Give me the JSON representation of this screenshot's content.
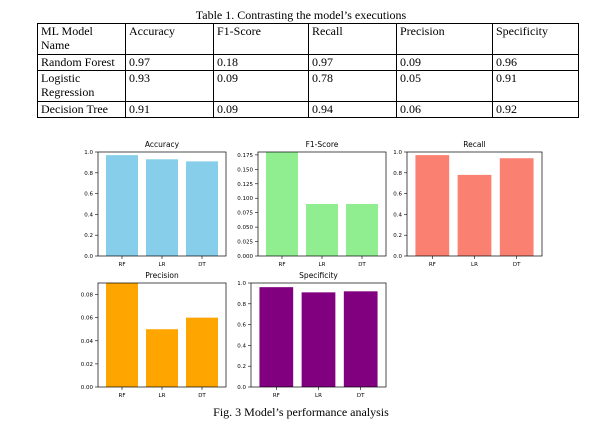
{
  "table": {
    "caption": "Table 1. Contrasting the model’s executions",
    "headers": [
      "ML Model Name",
      "Accuracy",
      "F1-Score",
      "Recall",
      "Precision",
      "Specificity"
    ],
    "rows": [
      [
        "Random Forest",
        "0.97",
        "0.18",
        "0.97",
        "0.09",
        "0.96"
      ],
      [
        "Logistic Regression",
        "0.93",
        "0.09",
        "0.78",
        "0.05",
        "0.91"
      ],
      [
        "Decision Tree",
        "0.91",
        "0.09",
        "0.94",
        "0.06",
        "0.92"
      ]
    ]
  },
  "figure": {
    "caption": "Fig. 3 Model’s performance analysis"
  },
  "chart_data": [
    {
      "type": "bar",
      "title": "Accuracy",
      "categories": [
        "RF",
        "LR",
        "DT"
      ],
      "values": [
        0.97,
        0.93,
        0.91
      ],
      "ylim": [
        0,
        1.0
      ],
      "yticks": [
        "0.0",
        "0.2",
        "0.4",
        "0.6",
        "0.8",
        "1.0"
      ],
      "color": "#87CEEB",
      "grid": false
    },
    {
      "type": "bar",
      "title": "F1-Score",
      "categories": [
        "RF",
        "LR",
        "DT"
      ],
      "values": [
        0.18,
        0.09,
        0.09
      ],
      "ylim": [
        0,
        0.18
      ],
      "yticks": [
        "0.000",
        "0.025",
        "0.050",
        "0.075",
        "0.100",
        "0.125",
        "0.150",
        "0.175"
      ],
      "color": "#90EE90",
      "grid": false
    },
    {
      "type": "bar",
      "title": "Recall",
      "categories": [
        "RF",
        "LR",
        "DT"
      ],
      "values": [
        0.97,
        0.78,
        0.94
      ],
      "ylim": [
        0,
        1.0
      ],
      "yticks": [
        "0.0",
        "0.2",
        "0.4",
        "0.6",
        "0.8",
        "1.0"
      ],
      "color": "#FA8072",
      "grid": false
    },
    {
      "type": "bar",
      "title": "Precision",
      "categories": [
        "RF",
        "LR",
        "DT"
      ],
      "values": [
        0.09,
        0.05,
        0.06
      ],
      "ylim": [
        0,
        0.09
      ],
      "yticks": [
        "0.00",
        "0.02",
        "0.04",
        "0.06",
        "0.08"
      ],
      "color": "#FFA500",
      "grid": false
    },
    {
      "type": "bar",
      "title": "Specificity",
      "categories": [
        "RF",
        "LR",
        "DT"
      ],
      "values": [
        0.96,
        0.91,
        0.92
      ],
      "ylim": [
        0,
        1.0
      ],
      "yticks": [
        "0.0",
        "0.2",
        "0.4",
        "0.6",
        "0.8",
        "1.0"
      ],
      "color": "#800080",
      "grid": false
    }
  ]
}
